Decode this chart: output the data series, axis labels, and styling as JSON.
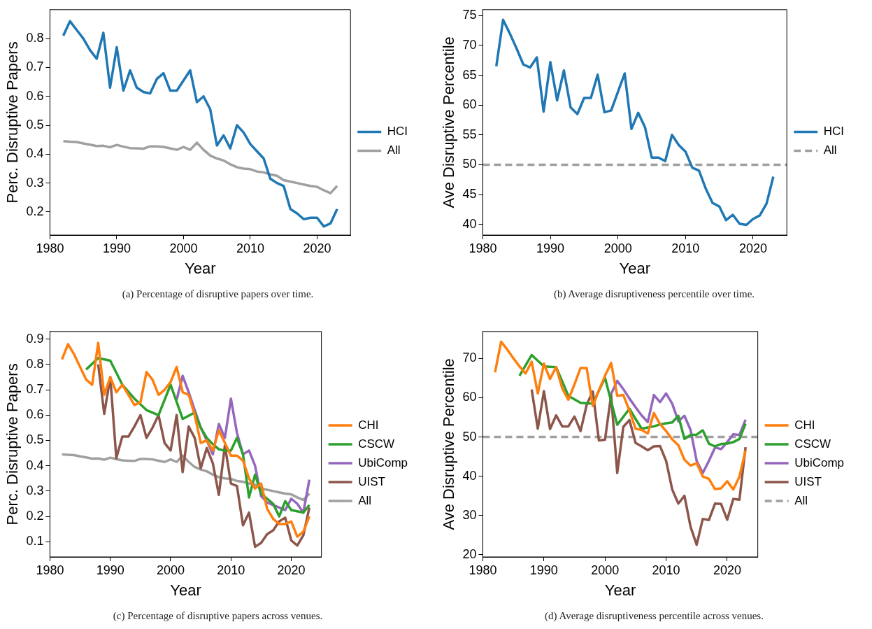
{
  "chart_data": [
    {
      "type": "line",
      "xlabel": "Year",
      "ylabel": "Perc. Disruptive Papers",
      "legend": "right",
      "xlim": [
        1980,
        2025
      ],
      "xticks": [
        1980,
        1990,
        2000,
        2010,
        2020
      ],
      "ylim": [
        0.12,
        0.9
      ],
      "yticks": [
        0.2,
        0.3,
        0.4,
        0.5,
        0.6,
        0.7,
        0.8
      ],
      "x": [
        1982,
        1983,
        1984,
        1985,
        1986,
        1987,
        1988,
        1989,
        1990,
        1991,
        1992,
        1993,
        1994,
        1995,
        1996,
        1997,
        1998,
        1999,
        2000,
        2001,
        2002,
        2003,
        2004,
        2005,
        2006,
        2007,
        2008,
        2009,
        2010,
        2011,
        2012,
        2013,
        2014,
        2015,
        2016,
        2017,
        2018,
        2019,
        2020,
        2021,
        2022,
        2023
      ],
      "series": [
        {
          "name": "HCI",
          "color": "#1f77b4",
          "values": [
            0.81,
            0.86,
            0.83,
            0.8,
            0.76,
            0.73,
            0.82,
            0.63,
            0.77,
            0.62,
            0.69,
            0.63,
            0.615,
            0.61,
            0.66,
            0.68,
            0.62,
            0.62,
            0.655,
            0.69,
            0.58,
            0.6,
            0.555,
            0.43,
            0.465,
            0.42,
            0.5,
            0.475,
            0.435,
            0.41,
            0.385,
            0.315,
            0.3,
            0.29,
            0.21,
            0.195,
            0.175,
            0.18,
            0.18,
            0.15,
            0.16,
            0.21
          ]
        },
        {
          "name": "All",
          "color": "#a0a0a0",
          "values": [
            0.445,
            0.443,
            0.442,
            0.437,
            0.433,
            0.428,
            0.429,
            0.424,
            0.432,
            0.426,
            0.421,
            0.42,
            0.419,
            0.427,
            0.427,
            0.425,
            0.42,
            0.415,
            0.425,
            0.415,
            0.44,
            0.415,
            0.395,
            0.385,
            0.378,
            0.365,
            0.355,
            0.35,
            0.348,
            0.34,
            0.337,
            0.33,
            0.325,
            0.31,
            0.305,
            0.3,
            0.295,
            0.29,
            0.287,
            0.275,
            0.265,
            0.29
          ]
        }
      ],
      "annotations": [
        "(a) Percentage of disruptive papers over time."
      ]
    },
    {
      "type": "line",
      "xlabel": "Year",
      "ylabel": "Ave Disruptive Percentile",
      "legend": "right",
      "xlim": [
        1980,
        2025
      ],
      "xticks": [
        1980,
        1990,
        2000,
        2010,
        2020
      ],
      "ylim": [
        38.2,
        76
      ],
      "yticks": [
        40,
        45,
        50,
        55,
        60,
        65,
        70,
        75
      ],
      "x": [
        1982,
        1983,
        1984,
        1985,
        1986,
        1987,
        1988,
        1989,
        1990,
        1991,
        1992,
        1993,
        1994,
        1995,
        1996,
        1997,
        1998,
        1999,
        2000,
        2001,
        2002,
        2003,
        2004,
        2005,
        2006,
        2007,
        2008,
        2009,
        2010,
        2011,
        2012,
        2013,
        2014,
        2015,
        2016,
        2017,
        2018,
        2019,
        2020,
        2021,
        2022,
        2023
      ],
      "series": [
        {
          "name": "HCI",
          "color": "#1f77b4",
          "values": [
            66.5,
            74.3,
            72,
            69.5,
            66.8,
            66.3,
            68,
            58.9,
            67.2,
            60.8,
            65.8,
            59.6,
            58.5,
            61.2,
            61.2,
            65.1,
            58.8,
            59.1,
            62.2,
            65.3,
            56,
            58.7,
            56.3,
            51.2,
            51.2,
            50.6,
            55,
            53.3,
            52.2,
            49.5,
            49,
            46,
            43.6,
            43,
            40.7,
            41.6,
            40.1,
            39.9,
            40.9,
            41.5,
            43.5,
            48
          ]
        },
        {
          "name": "All",
          "color": "#a0a0a0",
          "line_style": "dashed",
          "x": [
            1980,
            2025
          ],
          "values": [
            50,
            50
          ]
        }
      ],
      "annotations": [
        "(b) Average disruptiveness percentile over time."
      ]
    },
    {
      "type": "line",
      "xlabel": "Year",
      "ylabel": "Perc. Disruptive Papers",
      "legend": "right",
      "xlim": [
        1980,
        2025
      ],
      "xticks": [
        1980,
        1990,
        2000,
        2010,
        2020
      ],
      "ylim": [
        0.04,
        0.93
      ],
      "yticks": [
        0.1,
        0.2,
        0.3,
        0.4,
        0.5,
        0.6,
        0.7,
        0.8,
        0.9
      ],
      "x": [
        1982,
        1983,
        1984,
        1985,
        1986,
        1987,
        1988,
        1989,
        1990,
        1991,
        1992,
        1993,
        1994,
        1995,
        1996,
        1997,
        1998,
        1999,
        2000,
        2001,
        2002,
        2003,
        2004,
        2005,
        2006,
        2007,
        2008,
        2009,
        2010,
        2011,
        2012,
        2013,
        2014,
        2015,
        2016,
        2017,
        2018,
        2019,
        2020,
        2021,
        2022,
        2023
      ],
      "series": [
        {
          "name": "CHI",
          "color": "#ff7f0e",
          "values": [
            0.82,
            0.88,
            0.84,
            0.79,
            0.74,
            0.72,
            0.885,
            0.68,
            0.75,
            0.69,
            0.72,
            0.68,
            0.64,
            0.65,
            0.77,
            0.74,
            0.68,
            0.7,
            0.73,
            0.79,
            0.69,
            0.68,
            0.6,
            0.49,
            0.5,
            0.46,
            0.54,
            0.49,
            0.44,
            0.44,
            0.42,
            0.35,
            0.31,
            0.33,
            0.23,
            0.19,
            0.17,
            0.17,
            0.18,
            0.12,
            0.14,
            0.2
          ]
        },
        {
          "name": "CSCW",
          "color": "#2ca02c",
          "x": [
            1986,
            1988,
            1990,
            1992,
            1994,
            1996,
            1998,
            2000,
            2002,
            2004,
            2005,
            2006,
            2007,
            2008,
            2009,
            2010,
            2011,
            2012,
            2013,
            2014,
            2015,
            2016,
            2017,
            2018,
            2019,
            2020,
            2021,
            2022,
            2023
          ],
          "values": [
            0.78,
            0.825,
            0.815,
            0.72,
            0.665,
            0.62,
            0.6,
            0.72,
            0.585,
            0.61,
            0.55,
            0.51,
            0.485,
            0.465,
            0.46,
            0.46,
            0.51,
            0.445,
            0.275,
            0.365,
            0.29,
            0.27,
            0.25,
            0.2,
            0.26,
            0.225,
            0.22,
            0.215,
            0.245
          ]
        },
        {
          "name": "UbiComp",
          "color": "#9467bd",
          "x": [
            2001,
            2002,
            2003,
            2004,
            2005,
            2006,
            2007,
            2008,
            2009,
            2010,
            2011,
            2012,
            2013,
            2014,
            2015,
            2016,
            2017,
            2018,
            2019,
            2020,
            2021,
            2022,
            2023
          ],
          "values": [
            0.66,
            0.755,
            0.69,
            0.62,
            0.55,
            0.5,
            0.445,
            0.565,
            0.51,
            0.665,
            0.53,
            0.445,
            0.46,
            0.4,
            0.28,
            0.255,
            0.245,
            0.235,
            0.225,
            0.27,
            0.25,
            0.215,
            0.345
          ]
        },
        {
          "name": "UIST",
          "color": "#8c564b",
          "x": [
            1988,
            1989,
            1990,
            1991,
            1992,
            1993,
            1994,
            1995,
            1996,
            1997,
            1998,
            1999,
            2000,
            2001,
            2002,
            2003,
            2004,
            2005,
            2006,
            2007,
            2008,
            2009,
            2010,
            2011,
            2012,
            2013,
            2014,
            2015,
            2016,
            2017,
            2018,
            2019,
            2020,
            2021,
            2022,
            2023
          ],
          "values": [
            0.8,
            0.605,
            0.75,
            0.43,
            0.515,
            0.515,
            0.555,
            0.6,
            0.51,
            0.55,
            0.6,
            0.49,
            0.46,
            0.6,
            0.375,
            0.555,
            0.51,
            0.39,
            0.47,
            0.41,
            0.285,
            0.48,
            0.33,
            0.32,
            0.165,
            0.215,
            0.08,
            0.095,
            0.13,
            0.145,
            0.18,
            0.195,
            0.105,
            0.085,
            0.125,
            0.235
          ]
        },
        {
          "name": "All",
          "color": "#a0a0a0",
          "values": [
            0.445,
            0.443,
            0.442,
            0.437,
            0.433,
            0.428,
            0.429,
            0.424,
            0.432,
            0.426,
            0.421,
            0.42,
            0.419,
            0.427,
            0.427,
            0.425,
            0.42,
            0.415,
            0.425,
            0.415,
            0.44,
            0.415,
            0.395,
            0.385,
            0.378,
            0.365,
            0.355,
            0.35,
            0.348,
            0.34,
            0.337,
            0.33,
            0.325,
            0.31,
            0.305,
            0.3,
            0.295,
            0.29,
            0.287,
            0.275,
            0.265,
            0.29
          ]
        }
      ],
      "annotations": [
        "(c) Percentage of disruptive papers across venues."
      ]
    },
    {
      "type": "line",
      "xlabel": "Year",
      "ylabel": "Ave Disruptive Percentile",
      "legend": "right",
      "xlim": [
        1980,
        2025
      ],
      "xticks": [
        1980,
        1990,
        2000,
        2010,
        2020
      ],
      "ylim": [
        19.4,
        76.9
      ],
      "yticks": [
        20,
        30,
        40,
        50,
        60,
        70
      ],
      "x": [
        1982,
        1983,
        1984,
        1985,
        1986,
        1987,
        1988,
        1989,
        1990,
        1991,
        1992,
        1993,
        1994,
        1995,
        1996,
        1997,
        1998,
        1999,
        2000,
        2001,
        2002,
        2003,
        2004,
        2005,
        2006,
        2007,
        2008,
        2009,
        2010,
        2011,
        2012,
        2013,
        2014,
        2015,
        2016,
        2017,
        2018,
        2019,
        2020,
        2021,
        2022,
        2023
      ],
      "series": [
        {
          "name": "CHI",
          "color": "#ff7f0e",
          "values": [
            66.5,
            74.3,
            72.3,
            70.1,
            68.0,
            66.2,
            69.2,
            61.1,
            68.7,
            64.8,
            67.8,
            62.4,
            59.5,
            63.4,
            67.6,
            67.6,
            57.9,
            61.9,
            65.6,
            68.9,
            60.5,
            60.7,
            56.7,
            52.1,
            51.8,
            50.9,
            56.1,
            53.3,
            51.5,
            49.4,
            47.9,
            44.2,
            42.7,
            43.3,
            39.9,
            39.3,
            36.7,
            36.9,
            38.7,
            36.6,
            39.9,
            46.6
          ]
        },
        {
          "name": "CSCW",
          "color": "#2ca02c",
          "x": [
            1986,
            1988,
            1990,
            1992,
            1994,
            1996,
            1998,
            2000,
            2002,
            2004,
            2005,
            2006,
            2007,
            2008,
            2009,
            2010,
            2011,
            2012,
            2013,
            2014,
            2015,
            2016,
            2017,
            2018,
            2019,
            2020,
            2021,
            2022,
            2023
          ],
          "values": [
            65.6,
            70.9,
            68.0,
            67.8,
            60.5,
            58.7,
            58.5,
            65.1,
            53.1,
            57.2,
            54.6,
            52.1,
            52.4,
            52.7,
            53.2,
            53.5,
            53.7,
            55.4,
            49.5,
            50.5,
            50.6,
            51.7,
            48.3,
            47.6,
            48.2,
            48.3,
            48.7,
            49.5,
            53.4
          ]
        },
        {
          "name": "UbiComp",
          "color": "#9467bd",
          "x": [
            2001,
            2002,
            2003,
            2004,
            2005,
            2006,
            2007,
            2008,
            2009,
            2010,
            2011,
            2012,
            2013,
            2014,
            2015,
            2016,
            2017,
            2018,
            2019,
            2020,
            2021,
            2022,
            2023
          ],
          "values": [
            61.0,
            64.3,
            62.2,
            59.8,
            57.6,
            55.5,
            53.8,
            60.7,
            58.9,
            61.1,
            58.5,
            54.0,
            55.4,
            51.8,
            43.9,
            40.8,
            43.9,
            47.3,
            46.9,
            48.7,
            50.7,
            50.5,
            54.4
          ]
        },
        {
          "name": "UIST",
          "color": "#8c564b",
          "x": [
            1988,
            1989,
            1990,
            1991,
            1992,
            1993,
            1994,
            1995,
            1996,
            1997,
            1998,
            1999,
            2000,
            2001,
            2002,
            2003,
            2004,
            2005,
            2006,
            2007,
            2008,
            2009,
            2010,
            2011,
            2012,
            2013,
            2014,
            2015,
            2016,
            2017,
            2018,
            2019,
            2020,
            2021,
            2022,
            2023
          ],
          "values": [
            62.1,
            52.1,
            61.7,
            52.0,
            55.5,
            52.7,
            52.7,
            55.2,
            51.5,
            58.2,
            61.6,
            49.1,
            49.3,
            60.7,
            40.8,
            52.6,
            54.3,
            48.5,
            47.6,
            46.6,
            47.6,
            47.7,
            43.9,
            36.6,
            33.0,
            35.0,
            27.1,
            22.5,
            29.1,
            28.8,
            33.0,
            32.9,
            28.9,
            34.2,
            34.0,
            47.4
          ]
        },
        {
          "name": "All",
          "color": "#a0a0a0",
          "line_style": "dashed",
          "x": [
            1980,
            2025
          ],
          "values": [
            50,
            50
          ]
        }
      ],
      "annotations": [
        "(d) Average disruptiveness percentile across venues."
      ]
    }
  ]
}
